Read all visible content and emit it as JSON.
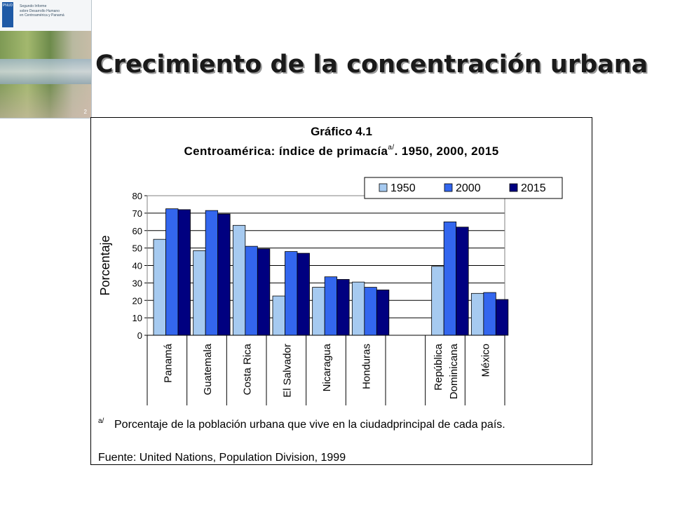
{
  "report_thumbnail": {
    "logo_text": "PNUD",
    "title_lines": [
      "Segundo Informe",
      "sobre Desarrollo Humano",
      "en Centroamérica y Panamá"
    ],
    "page_number": "2"
  },
  "slide": {
    "title": "Crecimiento de la concentración urbana"
  },
  "chart_data": {
    "type": "bar",
    "title": "Gráfico 4.1",
    "subtitle": "Centroamérica: índice de primacía",
    "subtitle_superscript": "a/",
    "subtitle_suffix": ". 1950, 2000, 2015",
    "ylabel": "Porcentaje",
    "xlabel": "",
    "ylim": [
      0,
      80
    ],
    "yticks": [
      "0",
      "10",
      "20",
      "30",
      "40",
      "50",
      "60",
      "70",
      "80"
    ],
    "categories": [
      "Panamá",
      "Guatemala",
      "Costa Rica",
      "El Salvador",
      "Nicaragua",
      "Honduras",
      "",
      "República|Dominicana",
      "México"
    ],
    "series": [
      {
        "name": "1950",
        "color": "#a6caf0",
        "values": [
          55,
          48.5,
          63,
          22.5,
          27.5,
          30.5,
          null,
          39.5,
          24
        ]
      },
      {
        "name": "2000",
        "color": "#3366ee",
        "values": [
          72.5,
          71.5,
          51,
          48,
          33.5,
          27.5,
          null,
          65,
          24.5
        ]
      },
      {
        "name": "2015",
        "color": "#000080",
        "values": [
          72,
          69.5,
          49.5,
          47,
          32,
          26,
          null,
          62,
          20.5
        ]
      }
    ],
    "grid": true,
    "legend_position": "top-right",
    "footnote_marker": "a/",
    "footnote": "Porcentaje de la población urbana que vive en la ciudadprincipal de cada país.",
    "source": "Fuente: United Nations, Population Division, 1999"
  }
}
